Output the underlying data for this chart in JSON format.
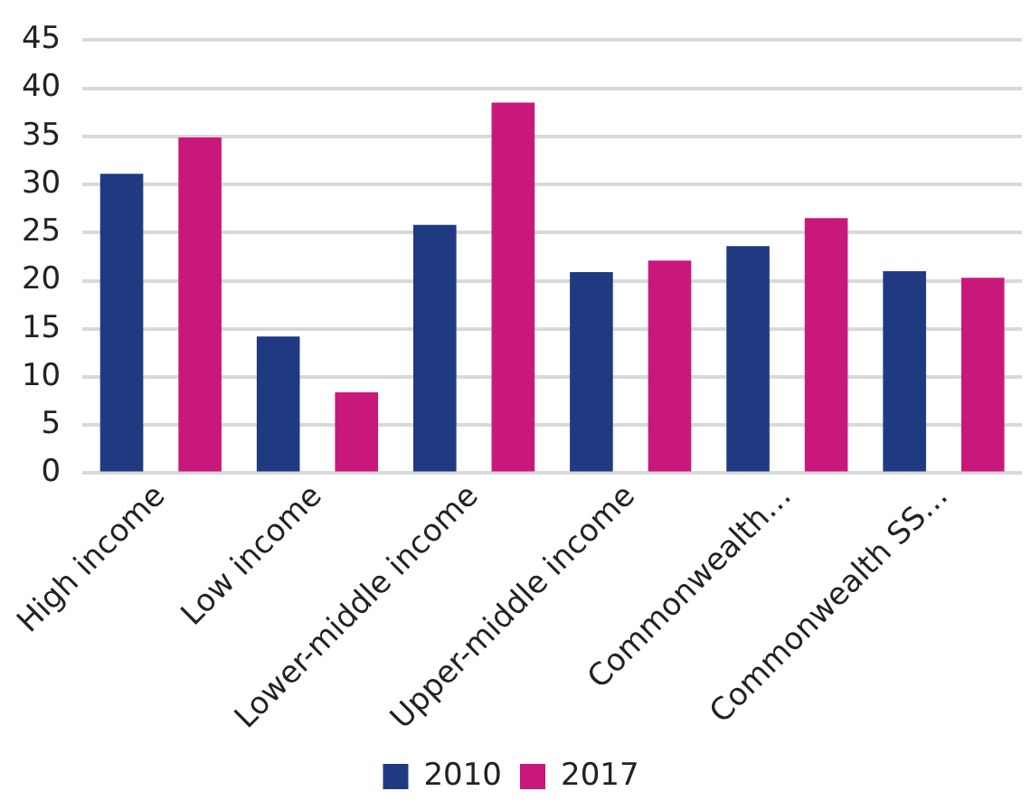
{
  "chart_data": {
    "type": "bar",
    "categories": [
      "High income",
      "Low income",
      "Lower-middle income",
      "Upper-middle income",
      "Commonwealth…",
      "Commonwealth SS…"
    ],
    "series": [
      {
        "name": "2010",
        "color": "#1f3a80",
        "values": [
          31.1,
          14.2,
          25.8,
          20.9,
          23.6,
          21.0
        ]
      },
      {
        "name": "2017",
        "color": "#c9187c",
        "values": [
          34.9,
          8.4,
          38.5,
          22.1,
          26.5,
          20.3
        ]
      }
    ],
    "ylim": [
      0,
      45
    ],
    "yticks": [
      0,
      5,
      10,
      15,
      20,
      25,
      30,
      35,
      40,
      45
    ],
    "grid": "y",
    "legend": "bottom"
  }
}
